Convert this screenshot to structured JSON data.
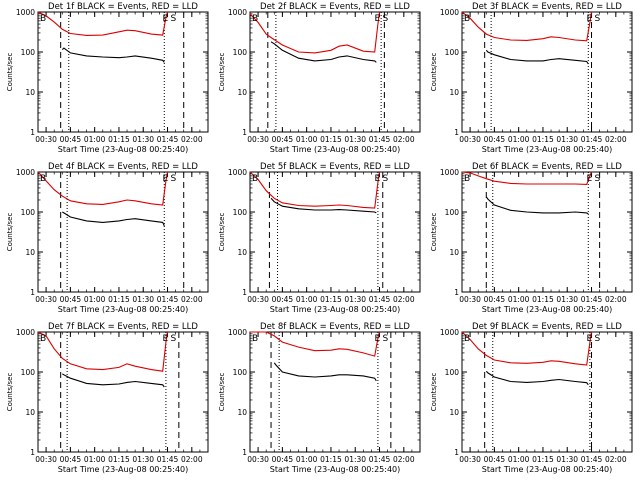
{
  "colors": {
    "events": "#000000",
    "lld": "#dd0000",
    "axes": "#000000",
    "background": "#ffffff"
  },
  "x_tick_labels": [
    "00:30",
    "00:45",
    "01:00",
    "01:15",
    "01:30",
    "01:45",
    "02:00"
  ],
  "y_tick_labels": [
    "1",
    "10",
    "100",
    "1000"
  ],
  "chart_data": [
    {
      "type": "line",
      "title": "Det 1f BLACK = Events, RED = LLD",
      "xlabel": "Start Time (23-Aug-08 00:25:40)",
      "ylabel": "Counts/sec",
      "y_scale": "log",
      "ylim": [
        1,
        1000
      ],
      "xlim": [
        "00:25",
        "02:10"
      ],
      "markers": [
        "B",
        "E",
        "S"
      ],
      "vlines": {
        "dashed": [
          "00:39",
          "01:55"
        ],
        "dotted": [
          "00:44",
          "01:43"
        ]
      },
      "series": [
        {
          "name": "RED = LLD",
          "color": "#dd0000",
          "x": [
            "00:25",
            "00:30",
            "00:35",
            "00:40",
            "00:45",
            "00:55",
            "01:05",
            "01:15",
            "01:20",
            "01:25",
            "01:35",
            "01:42",
            "01:44",
            "01:45"
          ],
          "y": [
            1000,
            800,
            560,
            370,
            290,
            260,
            265,
            320,
            350,
            340,
            280,
            265,
            720,
            1000
          ]
        },
        {
          "name": "BLACK = Events",
          "color": "#000000",
          "x": [
            "00:40",
            "00:41",
            "00:45",
            "00:55",
            "01:05",
            "01:15",
            "01:20",
            "01:25",
            "01:35",
            "01:42",
            "01:43"
          ],
          "y": [
            115,
            125,
            95,
            80,
            75,
            72,
            75,
            80,
            70,
            62,
            55
          ]
        }
      ]
    },
    {
      "type": "line",
      "title": "Det 2f BLACK = Events, RED = LLD",
      "xlabel": "Start Time (23-Aug-08 00:25:40)",
      "ylabel": "Counts/sec",
      "y_scale": "log",
      "ylim": [
        1,
        1000
      ],
      "xlim": [
        "00:25",
        "02:10"
      ],
      "markers": [
        "B",
        "E",
        "S"
      ],
      "vlines": {
        "dashed": [
          "00:36",
          "01:48"
        ],
        "dotted": [
          "00:41",
          "01:46"
        ]
      },
      "series": [
        {
          "name": "RED = LLD",
          "color": "#dd0000",
          "x": [
            "00:25",
            "00:30",
            "00:35",
            "00:38",
            "00:45",
            "00:55",
            "01:05",
            "01:15",
            "01:20",
            "01:25",
            "01:35",
            "01:42",
            "01:44",
            "01:45"
          ],
          "y": [
            900,
            550,
            280,
            230,
            150,
            100,
            95,
            110,
            140,
            150,
            105,
            100,
            500,
            1000
          ]
        },
        {
          "name": "BLACK = Events",
          "color": "#000000",
          "x": [
            "00:38",
            "00:40",
            "00:45",
            "00:55",
            "01:05",
            "01:15",
            "01:20",
            "01:25",
            "01:35",
            "01:42",
            "01:43"
          ],
          "y": [
            180,
            160,
            110,
            70,
            60,
            65,
            75,
            80,
            65,
            60,
            55
          ]
        }
      ]
    },
    {
      "type": "line",
      "title": "Det 3f BLACK = Events, RED = LLD",
      "xlabel": "Start Time (23-Aug-08 00:25:40)",
      "ylabel": "Counts/sec",
      "y_scale": "log",
      "ylim": [
        1,
        1000
      ],
      "xlim": [
        "00:25",
        "02:10"
      ],
      "markers": [
        "B",
        "E",
        "S"
      ],
      "vlines": {
        "dashed": [
          "00:39",
          "01:45"
        ],
        "dotted": [
          "00:43",
          "01:43"
        ]
      },
      "series": [
        {
          "name": "RED = LLD",
          "color": "#dd0000",
          "x": [
            "00:25",
            "00:30",
            "00:35",
            "00:40",
            "00:45",
            "00:55",
            "01:05",
            "01:15",
            "01:20",
            "01:25",
            "01:35",
            "01:42",
            "01:44",
            "01:45"
          ],
          "y": [
            1000,
            700,
            420,
            280,
            230,
            200,
            195,
            215,
            240,
            230,
            200,
            190,
            550,
            1000
          ]
        },
        {
          "name": "BLACK = Events",
          "color": "#000000",
          "x": [
            "00:40",
            "00:41",
            "00:45",
            "00:55",
            "01:05",
            "01:15",
            "01:20",
            "01:25",
            "01:35",
            "01:42",
            "01:43"
          ],
          "y": [
            110,
            100,
            85,
            65,
            60,
            60,
            65,
            68,
            62,
            58,
            50
          ]
        }
      ]
    },
    {
      "type": "line",
      "title": "Det 4f BLACK = Events, RED = LLD",
      "xlabel": "Start Time (23-Aug-08 00:25:40)",
      "ylabel": "Counts/sec",
      "y_scale": "log",
      "ylim": [
        1,
        1000
      ],
      "xlim": [
        "00:25",
        "02:10"
      ],
      "markers": [
        "B",
        "E",
        "S"
      ],
      "vlines": {
        "dashed": [
          "00:39",
          "01:55"
        ],
        "dotted": [
          "00:43",
          "01:43"
        ]
      },
      "series": [
        {
          "name": "RED = LLD",
          "color": "#dd0000",
          "x": [
            "00:25",
            "00:30",
            "00:35",
            "00:40",
            "00:45",
            "00:55",
            "01:05",
            "01:15",
            "01:20",
            "01:25",
            "01:35",
            "01:42",
            "01:44",
            "01:45"
          ],
          "y": [
            1000,
            600,
            360,
            250,
            190,
            160,
            155,
            180,
            200,
            190,
            160,
            150,
            600,
            1000
          ]
        },
        {
          "name": "BLACK = Events",
          "color": "#000000",
          "x": [
            "00:40",
            "00:41",
            "00:45",
            "00:55",
            "01:05",
            "01:15",
            "01:20",
            "01:25",
            "01:35",
            "01:42",
            "01:43"
          ],
          "y": [
            100,
            95,
            75,
            60,
            55,
            60,
            65,
            68,
            60,
            55,
            45
          ]
        }
      ]
    },
    {
      "type": "line",
      "title": "Det 5f BLACK = Events, RED = LLD",
      "xlabel": "Start Time (23-Aug-08 00:25:40)",
      "ylabel": "Counts/sec",
      "y_scale": "log",
      "ylim": [
        1,
        1000
      ],
      "xlim": [
        "00:25",
        "02:10"
      ],
      "markers": [
        "B",
        "E",
        "S"
      ],
      "vlines": {
        "dashed": [
          "00:37",
          "01:47"
        ],
        "dotted": [
          "00:42",
          "01:44"
        ]
      },
      "series": [
        {
          "name": "RED = LLD",
          "color": "#dd0000",
          "x": [
            "00:25",
            "00:30",
            "00:35",
            "00:40",
            "00:45",
            "00:55",
            "01:05",
            "01:15",
            "01:20",
            "01:25",
            "01:35",
            "01:42",
            "01:44",
            "01:45"
          ],
          "y": [
            1000,
            650,
            340,
            220,
            170,
            145,
            140,
            145,
            150,
            145,
            130,
            125,
            550,
            1000
          ]
        },
        {
          "name": "BLACK = Events",
          "color": "#000000",
          "x": [
            "00:38",
            "00:40",
            "00:45",
            "00:55",
            "01:05",
            "01:15",
            "01:20",
            "01:25",
            "01:35",
            "01:42",
            "01:43"
          ],
          "y": [
            220,
            180,
            140,
            120,
            112,
            112,
            115,
            112,
            105,
            100,
            95
          ]
        }
      ]
    },
    {
      "type": "line",
      "title": "Det 6f BLACK = Events, RED = LLD",
      "xlabel": "Start Time (23-Aug-08 00:25:40)",
      "ylabel": "Counts/sec",
      "y_scale": "log",
      "ylim": [
        1,
        1000
      ],
      "xlim": [
        "00:25",
        "02:10"
      ],
      "markers": [
        "B",
        "E",
        "S"
      ],
      "vlines": {
        "dashed": [
          "00:40",
          "01:50"
        ],
        "dotted": [
          "00:44",
          "01:43"
        ]
      },
      "series": [
        {
          "name": "RED = LLD",
          "color": "#dd0000",
          "x": [
            "00:25",
            "00:30",
            "00:35",
            "00:40",
            "00:45",
            "00:55",
            "01:05",
            "01:15",
            "01:25",
            "01:35",
            "01:42",
            "01:44",
            "01:45"
          ],
          "y": [
            1000,
            950,
            800,
            680,
            590,
            520,
            500,
            500,
            500,
            500,
            490,
            800,
            1000
          ]
        },
        {
          "name": "BLACK = Events",
          "color": "#000000",
          "x": [
            "00:40",
            "00:41",
            "00:45",
            "00:55",
            "01:05",
            "01:15",
            "01:25",
            "01:35",
            "01:42",
            "01:43"
          ],
          "y": [
            240,
            210,
            150,
            110,
            100,
            95,
            95,
            100,
            95,
            90
          ]
        }
      ]
    },
    {
      "type": "line",
      "title": "Det 7f BLACK = Events, RED = LLD",
      "xlabel": "Start Time (23-Aug-08 00:25:40)",
      "ylabel": "Counts/sec",
      "y_scale": "log",
      "ylim": [
        1,
        1000
      ],
      "xlim": [
        "00:25",
        "02:10"
      ],
      "markers": [
        "B",
        "E",
        "S"
      ],
      "vlines": {
        "dashed": [
          "00:39",
          "01:52"
        ],
        "dotted": [
          "00:43",
          "01:44"
        ]
      },
      "series": [
        {
          "name": "RED = LLD",
          "color": "#dd0000",
          "x": [
            "00:25",
            "00:30",
            "00:35",
            "00:40",
            "00:45",
            "00:55",
            "01:05",
            "01:15",
            "01:20",
            "01:25",
            "01:35",
            "01:42",
            "01:44",
            "01:45"
          ],
          "y": [
            1000,
            800,
            380,
            220,
            160,
            120,
            115,
            130,
            160,
            140,
            115,
            105,
            550,
            1000
          ]
        },
        {
          "name": "BLACK = Events",
          "color": "#000000",
          "x": [
            "00:40",
            "00:41",
            "00:45",
            "00:55",
            "01:05",
            "01:15",
            "01:20",
            "01:25",
            "01:35",
            "01:42",
            "01:43"
          ],
          "y": [
            90,
            85,
            70,
            52,
            48,
            50,
            55,
            58,
            52,
            48,
            42
          ]
        }
      ]
    },
    {
      "type": "line",
      "title": "Det 8f BLACK = Events, RED = LLD",
      "xlabel": "Start Time (23-Aug-08 00:25:40)",
      "ylabel": "Counts/sec",
      "y_scale": "log",
      "ylim": [
        1,
        1000
      ],
      "xlim": [
        "00:25",
        "02:10"
      ],
      "markers": [
        "B",
        "E",
        "S"
      ],
      "vlines": {
        "dashed": [
          "00:38",
          "01:52"
        ],
        "dotted": [
          "00:43",
          "01:44"
        ]
      },
      "series": [
        {
          "name": "RED = LLD",
          "color": "#dd0000",
          "x": [
            "00:25",
            "00:35",
            "00:40",
            "00:45",
            "00:55",
            "01:05",
            "01:15",
            "01:20",
            "01:25",
            "01:35",
            "01:42",
            "01:44",
            "01:45"
          ],
          "y": [
            1000,
            1000,
            800,
            560,
            420,
            340,
            350,
            380,
            370,
            300,
            250,
            700,
            1000
          ]
        },
        {
          "name": "BLACK = Events",
          "color": "#000000",
          "x": [
            "00:40",
            "00:41",
            "00:45",
            "00:55",
            "01:05",
            "01:15",
            "01:20",
            "01:25",
            "01:35",
            "01:42",
            "01:43"
          ],
          "y": [
            170,
            150,
            100,
            80,
            75,
            80,
            85,
            85,
            80,
            70,
            60
          ]
        }
      ]
    },
    {
      "type": "line",
      "title": "Det 9f BLACK = Events, RED = LLD",
      "xlabel": "Start Time (23-Aug-08 00:25:40)",
      "ylabel": "Counts/sec",
      "y_scale": "log",
      "ylim": [
        1,
        1000
      ],
      "xlim": [
        "00:25",
        "02:10"
      ],
      "markers": [
        "B",
        "E",
        "S"
      ],
      "vlines": {
        "dashed": [
          "00:39",
          "01:45"
        ],
        "dotted": [
          "00:44",
          "01:44"
        ]
      },
      "series": [
        {
          "name": "RED = LLD",
          "color": "#dd0000",
          "x": [
            "00:25",
            "00:30",
            "00:35",
            "00:40",
            "00:45",
            "00:55",
            "01:05",
            "01:15",
            "01:20",
            "01:25",
            "01:35",
            "01:42",
            "01:44",
            "01:45"
          ],
          "y": [
            1000,
            650,
            380,
            260,
            200,
            170,
            165,
            175,
            190,
            185,
            160,
            150,
            550,
            1000
          ]
        },
        {
          "name": "BLACK = Events",
          "color": "#000000",
          "x": [
            "00:40",
            "00:41",
            "00:45",
            "00:55",
            "01:05",
            "01:15",
            "01:20",
            "01:25",
            "01:35",
            "01:42",
            "01:43"
          ],
          "y": [
            105,
            95,
            75,
            58,
            55,
            58,
            62,
            65,
            58,
            54,
            48
          ]
        }
      ]
    }
  ]
}
